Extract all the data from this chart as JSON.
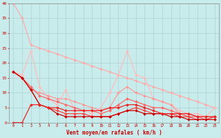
{
  "bg_color": "#c8ecec",
  "grid_color": "#b0d0d0",
  "xlabel": "Vent moyen/en rafales ( km/h )",
  "xlim": [
    -0.5,
    23.5
  ],
  "ylim": [
    0,
    40
  ],
  "xticks": [
    0,
    1,
    2,
    3,
    4,
    5,
    6,
    7,
    8,
    9,
    10,
    11,
    12,
    13,
    14,
    15,
    16,
    17,
    18,
    19,
    20,
    21,
    22,
    23
  ],
  "yticks": [
    0,
    5,
    10,
    15,
    20,
    25,
    30,
    35,
    40
  ],
  "lines": [
    {
      "x": [
        0,
        1,
        2,
        3,
        4,
        5,
        6,
        7,
        8,
        9,
        10,
        11,
        12,
        13,
        14,
        15,
        16,
        17,
        18,
        19,
        20,
        21,
        22,
        23
      ],
      "y": [
        40,
        35,
        26,
        25,
        24,
        23,
        22,
        21,
        20,
        19,
        18,
        17,
        16,
        15,
        14,
        13,
        12,
        11,
        10,
        9,
        8,
        7,
        6,
        5
      ],
      "color": "#ffaaaa",
      "lw": 0.9,
      "marker": "D",
      "ms": 2.0
    },
    {
      "x": [
        0,
        1,
        2,
        3,
        4,
        5,
        6,
        7,
        8,
        9,
        10,
        11,
        12,
        13,
        14,
        15,
        16,
        17,
        18,
        19,
        20,
        21,
        22,
        23
      ],
      "y": [
        17,
        16,
        24,
        12,
        8,
        6,
        11,
        4,
        4,
        3,
        5,
        10,
        16,
        24,
        16,
        15,
        8,
        7,
        6,
        4,
        3,
        3,
        2,
        5
      ],
      "color": "#ffbbbb",
      "lw": 0.9,
      "marker": "D",
      "ms": 2.0
    },
    {
      "x": [
        0,
        1,
        2,
        3,
        4,
        5,
        6,
        7,
        8,
        9,
        10,
        11,
        12,
        13,
        14,
        15,
        16,
        17,
        18,
        19,
        20,
        21,
        22,
        23
      ],
      "y": [
        17,
        15,
        11,
        10,
        9,
        8,
        8,
        7,
        6,
        5,
        4,
        5,
        10,
        12,
        10,
        9,
        8,
        7,
        6,
        3,
        3,
        2,
        2,
        2
      ],
      "color": "#ff9999",
      "lw": 0.9,
      "marker": "D",
      "ms": 2.0
    },
    {
      "x": [
        0,
        1,
        2,
        3,
        4,
        5,
        6,
        7,
        8,
        9,
        10,
        11,
        12,
        13,
        14,
        15,
        16,
        17,
        18,
        19,
        20,
        21,
        22,
        23
      ],
      "y": [
        17,
        15,
        12,
        9,
        8,
        7,
        6,
        5,
        4,
        4,
        3,
        4,
        6,
        8,
        7,
        6,
        5,
        5,
        4,
        3,
        2,
        2,
        1,
        2
      ],
      "color": "#ff6666",
      "lw": 0.9,
      "marker": "D",
      "ms": 2.0
    },
    {
      "x": [
        0,
        1,
        2,
        3,
        4,
        5,
        6,
        7,
        8,
        9,
        10,
        11,
        12,
        13,
        14,
        15,
        16,
        17,
        18,
        19,
        20,
        21,
        22,
        23
      ],
      "y": [
        17,
        15,
        11,
        6,
        5,
        4,
        3,
        3,
        3,
        2,
        2,
        2,
        3,
        4,
        5,
        4,
        3,
        3,
        3,
        2,
        2,
        1,
        1,
        2
      ],
      "color": "#ff4444",
      "lw": 0.9,
      "marker": "D",
      "ms": 2.0
    },
    {
      "x": [
        0,
        1,
        2,
        3,
        4,
        5,
        6,
        7,
        8,
        9,
        10,
        11,
        12,
        13,
        14,
        15,
        16,
        17,
        18,
        19,
        20,
        21,
        22,
        23
      ],
      "y": [
        17,
        15,
        11,
        6,
        5,
        3,
        2,
        2,
        2,
        2,
        2,
        2,
        3,
        4,
        4,
        3,
        3,
        3,
        2,
        2,
        1,
        1,
        1,
        1
      ],
      "color": "#cc0000",
      "lw": 0.9,
      "marker": "D",
      "ms": 2.0
    },
    {
      "x": [
        0,
        1,
        2,
        3,
        4,
        5,
        6,
        7,
        8,
        9,
        10,
        11,
        12,
        13,
        14,
        15,
        16,
        17,
        18,
        19,
        20,
        21,
        22,
        23
      ],
      "y": [
        0,
        0,
        6,
        6,
        5,
        5,
        4,
        4,
        4,
        4,
        4,
        5,
        5,
        6,
        6,
        5,
        4,
        3,
        3,
        3,
        3,
        2,
        2,
        2
      ],
      "color": "#ee2222",
      "lw": 0.9,
      "marker": "D",
      "ms": 2.0
    }
  ]
}
